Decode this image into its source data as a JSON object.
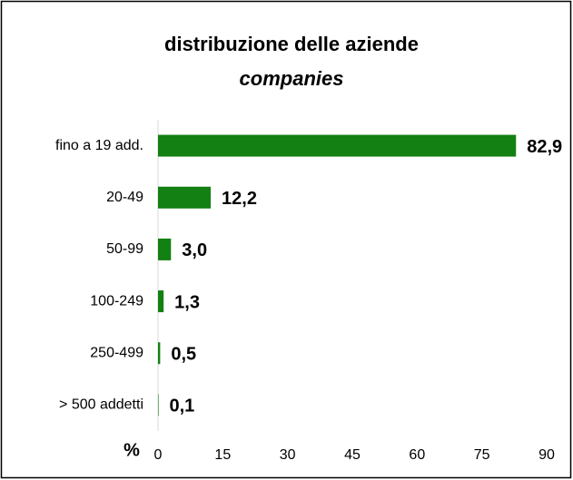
{
  "chart_data": {
    "type": "bar",
    "orientation": "horizontal",
    "title": "distribuzione delle aziende",
    "subtitle": "companies",
    "xlabel": "%",
    "categories": [
      "fino a 19 add.",
      "20-49",
      "50-99",
      "100-249",
      "250-499",
      "> 500 addetti"
    ],
    "values": [
      82.9,
      12.2,
      3.0,
      1.3,
      0.5,
      0.1
    ],
    "value_labels": [
      "82,9",
      "12,2",
      "3,0",
      "1,3",
      "0,5",
      "0,1"
    ],
    "color": "#128012",
    "xlim": [
      0,
      90
    ],
    "xticks": [
      0,
      15,
      30,
      45,
      60,
      75,
      90
    ],
    "grid": false
  }
}
